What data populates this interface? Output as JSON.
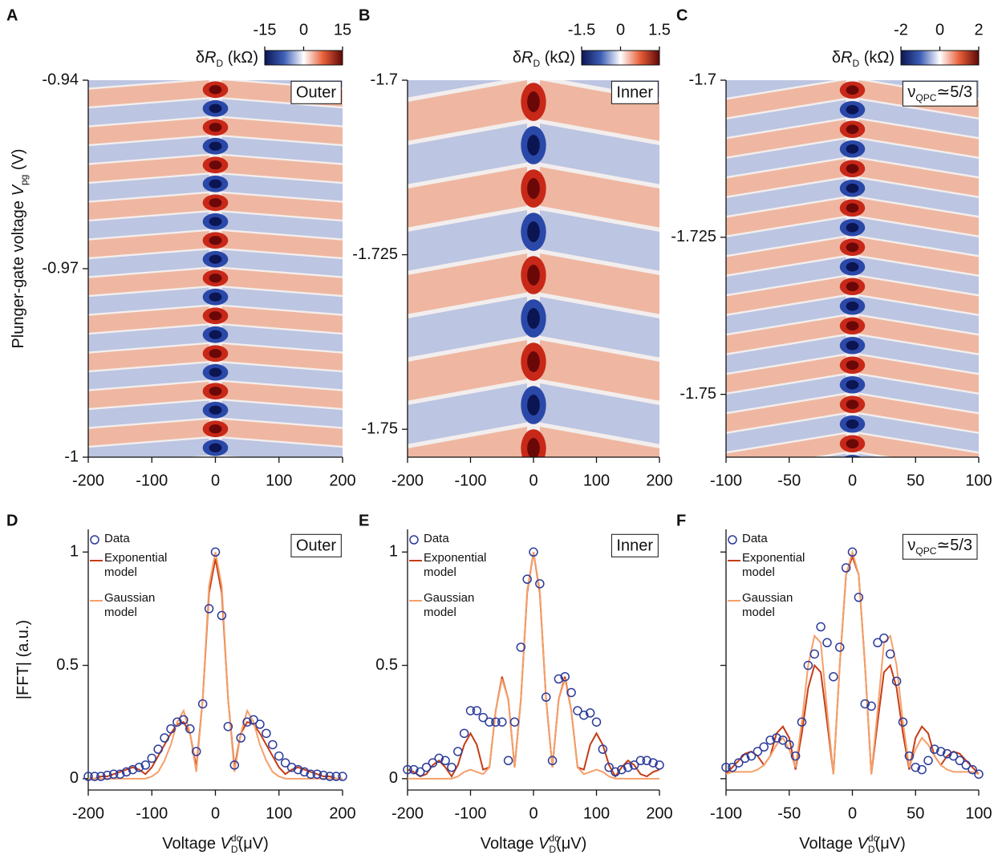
{
  "chart_data": [
    {
      "type": "heatmap",
      "panel": "A",
      "inset": "Outer",
      "xlim": [
        -200,
        200
      ],
      "xticks": [
        -200,
        -100,
        0,
        100,
        200
      ],
      "ylim": [
        -1,
        -0.94
      ],
      "yticks": [
        -0.94,
        -0.97,
        -1
      ],
      "zlim": [
        -15,
        15
      ],
      "zticks": [
        -15,
        0,
        15
      ],
      "zlabel": {
        "text": "δ",
        "var": "R",
        "sub": "D",
        "unit": " (kΩ)"
      },
      "ylabel": {
        "text": "Plunger-gate voltage ",
        "var": "V",
        "sub": "pg",
        "unit": " (V)"
      }
    },
    {
      "type": "heatmap",
      "panel": "B",
      "inset": "Inner",
      "xlim": [
        -200,
        200
      ],
      "xticks": [
        -200,
        -100,
        0,
        100,
        200
      ],
      "ylim": [
        -1.754,
        -1.7
      ],
      "yticks": [
        -1.7,
        -1.725,
        -1.75
      ],
      "zlim": [
        -1.5,
        1.5
      ],
      "zticks": [
        -1.5,
        0,
        1.5
      ],
      "zlabel": {
        "text": "δ",
        "var": "R",
        "sub": "D",
        "unit": " (kΩ)"
      }
    },
    {
      "type": "heatmap",
      "panel": "C",
      "inset": {
        "text": "ν",
        "sub": "QPC",
        "unit": "≃5/3"
      },
      "xlim": [
        -100,
        100
      ],
      "xticks": [
        -100,
        -50,
        0,
        50,
        100
      ],
      "ylim": [
        -1.76,
        -1.7
      ],
      "yticks": [
        -1.7,
        -1.725,
        -1.75
      ],
      "zlim": [
        -2,
        2
      ],
      "zticks": [
        -2,
        0,
        2
      ],
      "zlabel": {
        "text": "δ",
        "var": "R",
        "sub": "D",
        "unit": " (kΩ)"
      }
    },
    {
      "type": "line",
      "panel": "D",
      "inset": "Outer",
      "xlim": [
        -200,
        200
      ],
      "xticks": [
        -200,
        -100,
        0,
        100,
        200
      ],
      "ylim": [
        -0.05,
        1.1
      ],
      "yticks": [
        0,
        0.5,
        1
      ],
      "xlabel": {
        "text": "Voltage ",
        "var": "V",
        "sup": "dc",
        "sub": "D",
        "unit": "(μV)"
      },
      "ylabel": {
        "text": "|FFT| (a.u.)"
      },
      "x": [
        -200,
        -190,
        -180,
        -170,
        -160,
        -150,
        -140,
        -130,
        -120,
        -110,
        -100,
        -90,
        -80,
        -70,
        -60,
        -50,
        -40,
        -30,
        -20,
        -10,
        0,
        10,
        20,
        30,
        40,
        50,
        60,
        70,
        80,
        90,
        100,
        110,
        120,
        130,
        140,
        150,
        160,
        170,
        180,
        190,
        200
      ],
      "series": [
        {
          "name": "Data",
          "color": "#2b3b9a",
          "marker": "circle",
          "values": [
            0.01,
            0.01,
            0.01,
            0.015,
            0.02,
            0.02,
            0.03,
            0.04,
            0.05,
            0.06,
            0.09,
            0.13,
            0.18,
            0.22,
            0.25,
            0.26,
            0.22,
            0.12,
            0.33,
            0.75,
            1.0,
            0.72,
            0.23,
            0.06,
            0.18,
            0.25,
            0.26,
            0.24,
            0.2,
            0.15,
            0.1,
            0.07,
            0.05,
            0.04,
            0.03,
            0.02,
            0.02,
            0.015,
            0.01,
            0.01,
            0.01
          ]
        },
        {
          "name": "Exponential model",
          "color": "#c63c16",
          "marker": "line",
          "values": [
            0,
            0,
            0.01,
            0.01,
            0.02,
            0.03,
            0.04,
            0.05,
            0.04,
            0.02,
            0.05,
            0.1,
            0.15,
            0.2,
            0.24,
            0.25,
            0.2,
            0.05,
            0.35,
            0.82,
            0.97,
            0.82,
            0.35,
            0.05,
            0.2,
            0.25,
            0.24,
            0.2,
            0.15,
            0.1,
            0.05,
            0.02,
            0.04,
            0.05,
            0.04,
            0.03,
            0.02,
            0.01,
            0.01,
            0,
            0
          ]
        },
        {
          "name": "Gaussian model",
          "color": "#f4a06a",
          "marker": "line",
          "values": [
            0,
            0,
            0,
            0,
            0,
            0,
            0,
            0,
            0,
            0,
            0.01,
            0.03,
            0.08,
            0.15,
            0.25,
            0.3,
            0.2,
            0.03,
            0.35,
            0.85,
            1.0,
            0.85,
            0.35,
            0.03,
            0.2,
            0.3,
            0.25,
            0.15,
            0.08,
            0.03,
            0.01,
            0,
            0,
            0,
            0,
            0,
            0,
            0,
            0,
            0,
            0
          ]
        }
      ]
    },
    {
      "type": "line",
      "panel": "E",
      "inset": "Inner",
      "xlim": [
        -200,
        200
      ],
      "xticks": [
        -200,
        -100,
        0,
        100,
        200
      ],
      "ylim": [
        -0.05,
        1.1
      ],
      "yticks": [
        0,
        0.5,
        1
      ],
      "xlabel": {
        "text": "Voltage ",
        "var": "V",
        "sup": "dc",
        "sub": "D",
        "unit": "(μV)"
      },
      "x": [
        -200,
        -190,
        -180,
        -170,
        -160,
        -150,
        -140,
        -130,
        -120,
        -110,
        -100,
        -90,
        -80,
        -70,
        -60,
        -50,
        -40,
        -30,
        -20,
        -10,
        0,
        10,
        20,
        30,
        40,
        50,
        60,
        70,
        80,
        90,
        100,
        110,
        120,
        130,
        140,
        150,
        160,
        170,
        180,
        190,
        200
      ],
      "series": [
        {
          "name": "Data",
          "color": "#2b3b9a",
          "marker": "circle",
          "values": [
            0.04,
            0.04,
            0.03,
            0.05,
            0.07,
            0.09,
            0.08,
            0.05,
            0.12,
            0.2,
            0.3,
            0.3,
            0.27,
            0.25,
            0.25,
            0.25,
            0.08,
            0.25,
            0.58,
            0.88,
            1.0,
            0.86,
            0.36,
            0.08,
            0.44,
            0.45,
            0.38,
            0.3,
            0.28,
            0.29,
            0.25,
            0.13,
            0.05,
            0.03,
            0.04,
            0.05,
            0.06,
            0.08,
            0.08,
            0.07,
            0.06
          ]
        },
        {
          "name": "Exponential model",
          "color": "#c63c16",
          "marker": "line",
          "values": [
            0.04,
            0.03,
            0.01,
            0.02,
            0.06,
            0.08,
            0.05,
            0.01,
            0.06,
            0.15,
            0.2,
            0.15,
            0.04,
            0.05,
            0.3,
            0.45,
            0.35,
            0.05,
            0.35,
            0.82,
            1.0,
            0.82,
            0.35,
            0.05,
            0.35,
            0.45,
            0.3,
            0.05,
            0.04,
            0.15,
            0.2,
            0.15,
            0.06,
            0.01,
            0.05,
            0.08,
            0.06,
            0.02,
            0.01,
            0.03,
            0.04
          ]
        },
        {
          "name": "Gaussian model",
          "color": "#f4a06a",
          "marker": "line",
          "values": [
            0,
            0,
            0,
            0,
            0,
            0,
            0,
            0,
            0.01,
            0.03,
            0.04,
            0.03,
            0.02,
            0.05,
            0.3,
            0.44,
            0.35,
            0.05,
            0.35,
            0.83,
            1.0,
            0.83,
            0.35,
            0.05,
            0.35,
            0.44,
            0.3,
            0.05,
            0.02,
            0.03,
            0.04,
            0.03,
            0.01,
            0,
            0,
            0,
            0,
            0,
            0,
            0,
            0
          ]
        }
      ]
    },
    {
      "type": "line",
      "panel": "F",
      "inset": {
        "text": "ν",
        "sub": "QPC",
        "unit": "≃5/3"
      },
      "xlim": [
        -100,
        100
      ],
      "xticks": [
        -100,
        -50,
        0,
        50,
        100
      ],
      "ylim": [
        -0.05,
        1.1
      ],
      "yticks": [
        0,
        0.5,
        1
      ],
      "ytick_labels": false,
      "xlabel": {
        "text": "Voltage ",
        "var": "V",
        "sup": "dc",
        "sub": "D",
        "unit": "(μV)"
      },
      "x": [
        -100,
        -95,
        -90,
        -85,
        -80,
        -75,
        -70,
        -65,
        -60,
        -55,
        -50,
        -45,
        -40,
        -35,
        -30,
        -25,
        -20,
        -15,
        -10,
        -5,
        0,
        5,
        10,
        15,
        20,
        25,
        30,
        35,
        40,
        45,
        50,
        55,
        60,
        65,
        70,
        75,
        80,
        85,
        90,
        95,
        100
      ],
      "series": [
        {
          "name": "Data",
          "color": "#2b3b9a",
          "marker": "circle",
          "values": [
            0.05,
            0.05,
            0.07,
            0.09,
            0.1,
            0.12,
            0.14,
            0.17,
            0.18,
            0.17,
            0.15,
            0.1,
            0.25,
            0.5,
            0.55,
            0.67,
            0.6,
            0.45,
            0.58,
            0.93,
            1.0,
            0.8,
            0.33,
            0.32,
            0.6,
            0.62,
            0.55,
            0.43,
            0.25,
            0.1,
            0.05,
            0.04,
            0.08,
            0.13,
            0.12,
            0.11,
            0.1,
            0.08,
            0.06,
            0.04,
            0.02
          ]
        },
        {
          "name": "Exponential model",
          "color": "#c63c16",
          "marker": "line",
          "values": [
            0.02,
            0.05,
            0.08,
            0.11,
            0.12,
            0.1,
            0.06,
            0.1,
            0.2,
            0.23,
            0.18,
            0.04,
            0.2,
            0.4,
            0.5,
            0.47,
            0.25,
            0.02,
            0.5,
            0.9,
            0.98,
            0.9,
            0.5,
            0.02,
            0.25,
            0.47,
            0.5,
            0.4,
            0.2,
            0.04,
            0.18,
            0.23,
            0.2,
            0.1,
            0.06,
            0.1,
            0.12,
            0.11,
            0.08,
            0.05,
            0.02
          ]
        },
        {
          "name": "Gaussian model",
          "color": "#f4a06a",
          "marker": "line",
          "values": [
            0.02,
            0.03,
            0.03,
            0.03,
            0.03,
            0.04,
            0.06,
            0.1,
            0.15,
            0.18,
            0.13,
            0.05,
            0.25,
            0.5,
            0.63,
            0.6,
            0.3,
            0.02,
            0.5,
            0.9,
            1.0,
            0.9,
            0.5,
            0.02,
            0.3,
            0.6,
            0.63,
            0.5,
            0.25,
            0.05,
            0.13,
            0.18,
            0.15,
            0.1,
            0.06,
            0.04,
            0.03,
            0.03,
            0.03,
            0.03,
            0.02
          ]
        }
      ]
    }
  ]
}
